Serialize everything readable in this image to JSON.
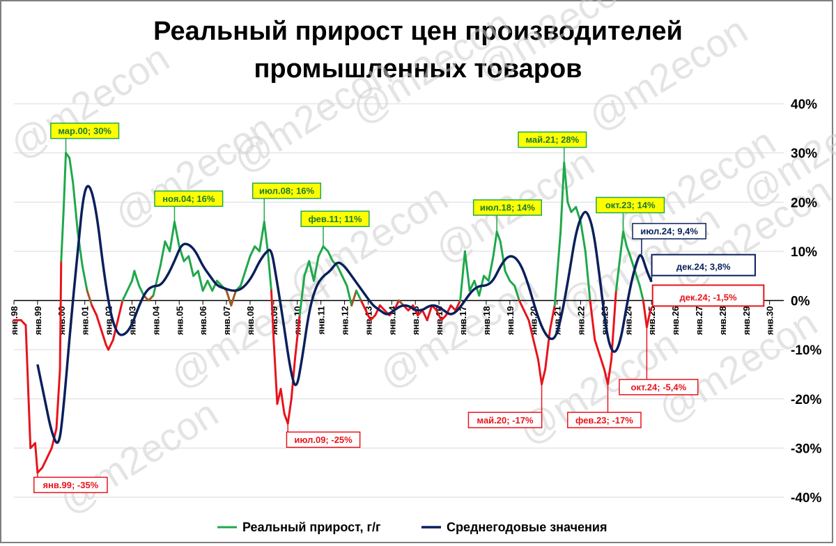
{
  "title_line1": "Реальный прирост цен производителей",
  "title_line2": "промышленных товаров",
  "watermark": "@m2econ",
  "colors": {
    "growth_positive": "#1fa84a",
    "growth_negative": "#e8131b",
    "growth_mid": "#9b5a24",
    "average": "#0a1f5c",
    "callout_green_bg": "#ffff00",
    "callout_green_border": "#1fa84a",
    "callout_red_border": "#e8131b",
    "callout_blue_border": "#0a1f5c"
  },
  "legend": [
    {
      "label": "Реальный прирост, г/г",
      "series": "growth"
    },
    {
      "label": "Среднегодовые значения",
      "series": "average"
    }
  ],
  "chart_data": {
    "type": "line",
    "ylim": [
      -40,
      40
    ],
    "yticks": [
      "-40%",
      "-30%",
      "-20%",
      "-10%",
      "0%",
      "10%",
      "20%",
      "30%",
      "40%"
    ],
    "xtick_labels": [
      "янв.98",
      "янв.99",
      "янв.00",
      "янв.01",
      "янв.02",
      "янв.03",
      "янв.04",
      "янв.05",
      "янв.06",
      "янв.07",
      "янв.08",
      "янв.09",
      "янв.10",
      "янв.11",
      "янв.12",
      "янв.13",
      "янв.14",
      "янв.15",
      "янв.16",
      "янв.17",
      "янв.18",
      "янв.19",
      "янв.20",
      "янв.21",
      "янв.22",
      "янв.23",
      "янв.24",
      "янв.25",
      "янв.26",
      "янв.27",
      "янв.28",
      "янв.29",
      "янв.30"
    ],
    "series": [
      {
        "name": "Реальный прирост, г/г",
        "points": [
          [
            1998.0,
            -4
          ],
          [
            1998.3,
            -4
          ],
          [
            1998.5,
            -5
          ],
          [
            1998.7,
            -30
          ],
          [
            1998.9,
            -29
          ],
          [
            1999.0,
            -35
          ],
          [
            1999.2,
            -34
          ],
          [
            1999.4,
            -32
          ],
          [
            1999.6,
            -30
          ],
          [
            1999.8,
            -26
          ],
          [
            1999.95,
            -14
          ],
          [
            2000.0,
            8
          ],
          [
            2000.1,
            18
          ],
          [
            2000.2,
            30
          ],
          [
            2000.35,
            29
          ],
          [
            2000.5,
            24
          ],
          [
            2000.7,
            14
          ],
          [
            2000.9,
            7
          ],
          [
            2001.1,
            2
          ],
          [
            2001.3,
            -1
          ],
          [
            2001.5,
            -3
          ],
          [
            2001.7,
            -6
          ],
          [
            2001.9,
            -9
          ],
          [
            2002.0,
            -10
          ],
          [
            2002.2,
            -8
          ],
          [
            2002.4,
            -4
          ],
          [
            2002.6,
            0
          ],
          [
            2002.8,
            2
          ],
          [
            2003.0,
            4
          ],
          [
            2003.1,
            6
          ],
          [
            2003.3,
            3
          ],
          [
            2003.5,
            1
          ],
          [
            2003.7,
            0
          ],
          [
            2003.9,
            1
          ],
          [
            2004.0,
            3
          ],
          [
            2004.2,
            7
          ],
          [
            2004.4,
            12
          ],
          [
            2004.6,
            10
          ],
          [
            2004.8,
            16
          ],
          [
            2005.0,
            11
          ],
          [
            2005.2,
            8
          ],
          [
            2005.4,
            9
          ],
          [
            2005.6,
            5
          ],
          [
            2005.8,
            6
          ],
          [
            2006.0,
            2
          ],
          [
            2006.2,
            4
          ],
          [
            2006.4,
            2
          ],
          [
            2006.6,
            4
          ],
          [
            2006.8,
            3
          ],
          [
            2007.0,
            2
          ],
          [
            2007.2,
            -1
          ],
          [
            2007.4,
            2
          ],
          [
            2007.6,
            3
          ],
          [
            2007.8,
            6
          ],
          [
            2008.0,
            9
          ],
          [
            2008.2,
            11
          ],
          [
            2008.4,
            10
          ],
          [
            2008.6,
            16
          ],
          [
            2008.75,
            10
          ],
          [
            2008.9,
            2
          ],
          [
            2009.0,
            -8
          ],
          [
            2009.15,
            -21
          ],
          [
            2009.3,
            -18
          ],
          [
            2009.45,
            -23
          ],
          [
            2009.6,
            -25
          ],
          [
            2009.75,
            -20
          ],
          [
            2009.9,
            -12
          ],
          [
            2010.1,
            -3
          ],
          [
            2010.3,
            5
          ],
          [
            2010.5,
            8
          ],
          [
            2010.7,
            4
          ],
          [
            2010.9,
            9
          ],
          [
            2011.1,
            11
          ],
          [
            2011.3,
            10
          ],
          [
            2011.5,
            8
          ],
          [
            2011.7,
            7
          ],
          [
            2011.9,
            5
          ],
          [
            2012.1,
            3
          ],
          [
            2012.3,
            -1
          ],
          [
            2012.5,
            2
          ],
          [
            2012.7,
            0
          ],
          [
            2012.9,
            -2
          ],
          [
            2013.1,
            -4
          ],
          [
            2013.3,
            -3
          ],
          [
            2013.5,
            -1
          ],
          [
            2013.7,
            -2
          ],
          [
            2013.9,
            -3
          ],
          [
            2014.1,
            -2
          ],
          [
            2014.3,
            0
          ],
          [
            2014.5,
            -1
          ],
          [
            2014.7,
            -2
          ],
          [
            2014.9,
            -1
          ],
          [
            2015.1,
            -3
          ],
          [
            2015.3,
            -2
          ],
          [
            2015.5,
            -4
          ],
          [
            2015.7,
            -1
          ],
          [
            2015.9,
            -2
          ],
          [
            2016.1,
            -4
          ],
          [
            2016.3,
            -3
          ],
          [
            2016.5,
            -1
          ],
          [
            2016.7,
            -2
          ],
          [
            2016.9,
            0
          ],
          [
            2017.1,
            10
          ],
          [
            2017.3,
            2
          ],
          [
            2017.5,
            4
          ],
          [
            2017.7,
            1
          ],
          [
            2017.9,
            5
          ],
          [
            2018.1,
            4
          ],
          [
            2018.3,
            9
          ],
          [
            2018.45,
            14
          ],
          [
            2018.6,
            12
          ],
          [
            2018.8,
            6
          ],
          [
            2019.0,
            4
          ],
          [
            2019.2,
            3
          ],
          [
            2019.4,
            0
          ],
          [
            2019.6,
            -2
          ],
          [
            2019.8,
            -4
          ],
          [
            2020.0,
            -8
          ],
          [
            2020.2,
            -12
          ],
          [
            2020.35,
            -17
          ],
          [
            2020.5,
            -14
          ],
          [
            2020.7,
            -6
          ],
          [
            2020.9,
            -1
          ],
          [
            2021.0,
            5
          ],
          [
            2021.15,
            14
          ],
          [
            2021.3,
            28
          ],
          [
            2021.45,
            20
          ],
          [
            2021.6,
            18
          ],
          [
            2021.8,
            19
          ],
          [
            2022.0,
            16
          ],
          [
            2022.2,
            10
          ],
          [
            2022.4,
            0
          ],
          [
            2022.6,
            -8
          ],
          [
            2022.8,
            -11
          ],
          [
            2023.0,
            -14
          ],
          [
            2023.15,
            -17
          ],
          [
            2023.3,
            -12
          ],
          [
            2023.5,
            2
          ],
          [
            2023.7,
            10
          ],
          [
            2023.8,
            14
          ],
          [
            2023.95,
            11
          ],
          [
            2024.1,
            9
          ],
          [
            2024.3,
            6
          ],
          [
            2024.5,
            3
          ],
          [
            2024.65,
            0
          ],
          [
            2024.8,
            -5.4
          ],
          [
            2024.95,
            -2
          ],
          [
            2025.0,
            -1.5
          ]
        ]
      },
      {
        "name": "Среднегодовые значения",
        "points": [
          [
            1999.0,
            -13
          ],
          [
            1999.3,
            -20
          ],
          [
            1999.6,
            -27
          ],
          [
            1999.9,
            -30
          ],
          [
            2000.1,
            -22
          ],
          [
            2000.4,
            -5
          ],
          [
            2000.7,
            10
          ],
          [
            2000.95,
            22
          ],
          [
            2001.2,
            24
          ],
          [
            2001.5,
            18
          ],
          [
            2001.8,
            6
          ],
          [
            2002.1,
            -3
          ],
          [
            2002.4,
            -7
          ],
          [
            2002.7,
            -7
          ],
          [
            2003.0,
            -5
          ],
          [
            2003.3,
            -1
          ],
          [
            2003.6,
            2
          ],
          [
            2003.9,
            3
          ],
          [
            2004.2,
            3
          ],
          [
            2004.5,
            5
          ],
          [
            2004.8,
            8
          ],
          [
            2005.1,
            11.5
          ],
          [
            2005.4,
            11.5
          ],
          [
            2005.7,
            10
          ],
          [
            2006.0,
            7
          ],
          [
            2006.3,
            5
          ],
          [
            2006.6,
            3
          ],
          [
            2006.9,
            2.5
          ],
          [
            2007.2,
            2
          ],
          [
            2007.5,
            2
          ],
          [
            2007.8,
            3
          ],
          [
            2008.1,
            5
          ],
          [
            2008.4,
            8
          ],
          [
            2008.7,
            10
          ],
          [
            2008.9,
            10.5
          ],
          [
            2009.1,
            5
          ],
          [
            2009.4,
            -4
          ],
          [
            2009.7,
            -14
          ],
          [
            2009.95,
            -18.5
          ],
          [
            2010.2,
            -12
          ],
          [
            2010.5,
            -2
          ],
          [
            2010.8,
            3
          ],
          [
            2011.1,
            5
          ],
          [
            2011.4,
            6
          ],
          [
            2011.7,
            8
          ],
          [
            2012.0,
            7
          ],
          [
            2012.3,
            5
          ],
          [
            2012.6,
            3
          ],
          [
            2012.9,
            1
          ],
          [
            2013.2,
            -1
          ],
          [
            2013.5,
            -2
          ],
          [
            2013.8,
            -3
          ],
          [
            2014.1,
            -2
          ],
          [
            2014.4,
            -1
          ],
          [
            2014.7,
            -1
          ],
          [
            2015.0,
            -2
          ],
          [
            2015.3,
            -2
          ],
          [
            2015.6,
            -1
          ],
          [
            2015.9,
            -1
          ],
          [
            2016.2,
            -2
          ],
          [
            2016.5,
            -3
          ],
          [
            2016.8,
            -2
          ],
          [
            2017.1,
            0
          ],
          [
            2017.4,
            2
          ],
          [
            2017.7,
            3
          ],
          [
            2018.0,
            3
          ],
          [
            2018.3,
            4
          ],
          [
            2018.6,
            7
          ],
          [
            2018.9,
            9
          ],
          [
            2019.2,
            9
          ],
          [
            2019.5,
            7
          ],
          [
            2019.8,
            3
          ],
          [
            2020.1,
            -2
          ],
          [
            2020.4,
            -6
          ],
          [
            2020.7,
            -8
          ],
          [
            2020.95,
            -7.5
          ],
          [
            2021.2,
            -3
          ],
          [
            2021.5,
            5
          ],
          [
            2021.8,
            14
          ],
          [
            2022.1,
            18
          ],
          [
            2022.3,
            18
          ],
          [
            2022.55,
            14
          ],
          [
            2022.8,
            5
          ],
          [
            2023.0,
            -3
          ],
          [
            2023.2,
            -9
          ],
          [
            2023.45,
            -11
          ],
          [
            2023.7,
            -8
          ],
          [
            2023.95,
            -1
          ],
          [
            2024.2,
            5
          ],
          [
            2024.45,
            9
          ],
          [
            2024.58,
            9.4
          ],
          [
            2024.8,
            6
          ],
          [
            2025.0,
            3.8
          ]
        ]
      }
    ],
    "annotations": [
      {
        "text": "мар.00; 30%",
        "x": 2000.2,
        "y": 30,
        "style": "green",
        "tx": 2001.0,
        "ty": 34.5
      },
      {
        "text": "ноя.04; 16%",
        "x": 2004.8,
        "y": 16,
        "style": "green",
        "tx": 2005.4,
        "ty": 20.7
      },
      {
        "text": "июл.08; 16%",
        "x": 2008.6,
        "y": 16,
        "style": "green",
        "tx": 2009.55,
        "ty": 22.3
      },
      {
        "text": "фев.11; 11%",
        "x": 2011.1,
        "y": 11,
        "style": "green",
        "tx": 2011.6,
        "ty": 16.6
      },
      {
        "text": "май.21; 28%",
        "x": 2021.3,
        "y": 28,
        "style": "green",
        "tx": 2020.8,
        "ty": 32.7
      },
      {
        "text": "июл.18; 14%",
        "x": 2018.45,
        "y": 14,
        "style": "green",
        "tx": 2018.9,
        "ty": 18.9
      },
      {
        "text": "окт.23; 14%",
        "x": 2023.8,
        "y": 14,
        "style": "green",
        "tx": 2024.1,
        "ty": 19.4
      },
      {
        "text": "июл.24; 9,4%",
        "x": 2024.58,
        "y": 9.4,
        "style": "blue",
        "tx": 2025.75,
        "ty": 14.1
      },
      {
        "text": "дек.24; 3,8%",
        "x": 2025.0,
        "y": 3.8,
        "style": "blue-big",
        "tx": 2027.2,
        "ty": 7.2
      },
      {
        "text": "дек.24; -1,5%",
        "x": 2025.0,
        "y": -1.5,
        "style": "red-big",
        "tx": 2027.4,
        "ty": 1.0
      },
      {
        "text": "янв.99; -35%",
        "x": 1999.0,
        "y": -35,
        "style": "red",
        "tx": 2000.4,
        "ty": -37.5
      },
      {
        "text": "июл.09; -25%",
        "x": 2009.6,
        "y": -25,
        "style": "red",
        "tx": 2011.1,
        "ty": -28.3
      },
      {
        "text": "май.20; -17%",
        "x": 2020.35,
        "y": -17,
        "style": "red",
        "tx": 2018.8,
        "ty": -24.3
      },
      {
        "text": "фев.23; -17%",
        "x": 2023.15,
        "y": -17,
        "style": "red",
        "tx": 2023.0,
        "ty": -24.3
      },
      {
        "text": "окт.24; -5,4%",
        "x": 2024.8,
        "y": -5.4,
        "style": "red",
        "tx": 2025.3,
        "ty": -17.6
      }
    ]
  }
}
